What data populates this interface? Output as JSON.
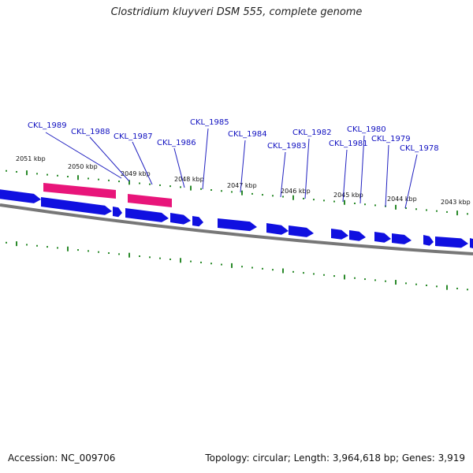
{
  "title": "Clostridium kluyveri DSM 555, complete genome",
  "footer": {
    "accession": "Accession: NC_009706",
    "summary": "Topology: circular; Length: 3,964,618 bp; Genes: 3,919"
  },
  "colors": {
    "gene_forward": "#1010e0",
    "gene_highlight": "#e8157a",
    "backbone": "#777777",
    "ticks": "#2a8a2a",
    "label_text": "#1010c0",
    "leader_line": "#2020c0"
  },
  "tick_labels": [
    "2051 kbp",
    "2050 kbp",
    "2049 kbp",
    "2048 kbp",
    "2047 kbp",
    "2046 kbp",
    "2045 kbp",
    "2044 kbp",
    "2043 kbp"
  ],
  "gene_labels": [
    "CKL_1989",
    "CKL_1988",
    "CKL_1987",
    "CKL_1986",
    "CKL_1985",
    "CKL_1984",
    "CKL_1983",
    "CKL_1982",
    "CKL_1981",
    "CKL_1980",
    "CKL_1979",
    "CKL_1978"
  ]
}
